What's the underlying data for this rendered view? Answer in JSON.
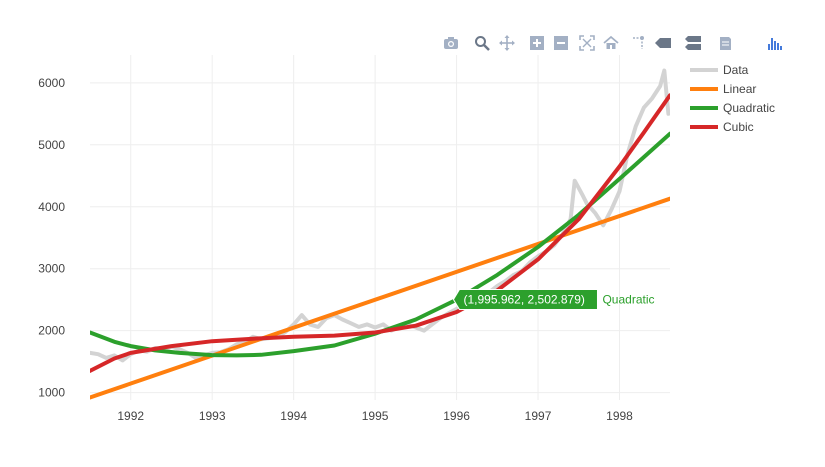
{
  "modebar": {
    "buttons": [
      {
        "name": "camera-icon",
        "title": "Download plot as a png"
      },
      {
        "name": "zoom-icon",
        "title": "Zoom"
      },
      {
        "name": "pan-icon",
        "title": "Pan"
      },
      {
        "name": "zoom-in-icon",
        "title": "Zoom in"
      },
      {
        "name": "zoom-out-icon",
        "title": "Zoom out"
      },
      {
        "name": "autoscale-icon",
        "title": "Autoscale"
      },
      {
        "name": "home-icon",
        "title": "Reset axes"
      },
      {
        "name": "spike-lines-icon",
        "title": "Toggle Spike Lines"
      },
      {
        "name": "hover-closest-icon",
        "title": "Show closest data on hover"
      },
      {
        "name": "hover-compare-icon",
        "title": "Compare data on hover"
      },
      {
        "name": "edit-icon",
        "title": "Edit in Chart Studio"
      },
      {
        "name": "plotly-logo-icon",
        "title": "Produced with Plotly"
      }
    ]
  },
  "chart_data": {
    "type": "line",
    "title": "",
    "xlabel": "",
    "ylabel": "",
    "xlim": [
      1991.5,
      1998.62
    ],
    "ylim": [
      880,
      6450
    ],
    "x_ticks": [
      1992,
      1993,
      1994,
      1995,
      1996,
      1997,
      1998
    ],
    "x_tick_labels": [
      "1992",
      "1993",
      "1994",
      "1995",
      "1996",
      "1997",
      "1998"
    ],
    "y_ticks": [
      1000,
      2000,
      3000,
      4000,
      5000,
      6000
    ],
    "y_tick_labels": [
      "1000",
      "2000",
      "3000",
      "4000",
      "5000",
      "6000"
    ],
    "grid": true,
    "legend_position": "top-right",
    "series": [
      {
        "name": "Data",
        "color": "#d3d3d3",
        "x": [
          1991.5,
          1991.6,
          1991.7,
          1991.8,
          1991.9,
          1992.0,
          1992.1,
          1992.2,
          1992.3,
          1992.4,
          1992.5,
          1992.6,
          1992.7,
          1992.8,
          1992.9,
          1993.0,
          1993.1,
          1993.2,
          1993.3,
          1993.4,
          1993.5,
          1993.6,
          1993.7,
          1993.8,
          1993.9,
          1994.0,
          1994.1,
          1994.2,
          1994.3,
          1994.4,
          1994.5,
          1994.6,
          1994.7,
          1994.8,
          1994.9,
          1995.0,
          1995.1,
          1995.2,
          1995.3,
          1995.4,
          1995.5,
          1995.6,
          1995.7,
          1995.8,
          1995.9,
          1996.0,
          1996.1,
          1996.2,
          1996.3,
          1996.4,
          1996.5,
          1996.6,
          1996.7,
          1996.8,
          1996.9,
          1997.0,
          1997.1,
          1997.2,
          1997.3,
          1997.4,
          1997.45,
          1997.5,
          1997.55,
          1997.6,
          1997.7,
          1997.8,
          1997.9,
          1998.0,
          1998.1,
          1998.2,
          1998.3,
          1998.4,
          1998.5,
          1998.55,
          1998.6
        ],
        "y": [
          1640,
          1620,
          1560,
          1600,
          1520,
          1620,
          1680,
          1660,
          1720,
          1700,
          1740,
          1700,
          1640,
          1560,
          1600,
          1640,
          1650,
          1700,
          1780,
          1820,
          1900,
          1860,
          1880,
          1900,
          1980,
          2100,
          2250,
          2100,
          2060,
          2200,
          2250,
          2180,
          2120,
          2060,
          2100,
          2050,
          2100,
          2000,
          2060,
          2100,
          2050,
          2000,
          2100,
          2200,
          2280,
          2350,
          2420,
          2500,
          2560,
          2620,
          2720,
          2800,
          2900,
          2960,
          3100,
          3200,
          3280,
          3380,
          3560,
          3800,
          4420,
          4300,
          4180,
          4050,
          3900,
          3700,
          3950,
          4250,
          4850,
          5300,
          5600,
          5750,
          5950,
          6200,
          5500
        ]
      },
      {
        "name": "Linear",
        "color": "#ff7f0e",
        "x": [
          1991.5,
          1998.62
        ],
        "y": [
          920,
          4130
        ]
      },
      {
        "name": "Quadratic",
        "color": "#2ca02c",
        "x": [
          1991.5,
          1991.8,
          1992.0,
          1992.3,
          1992.6,
          1993.0,
          1993.3,
          1993.6,
          1994.0,
          1994.5,
          1995.0,
          1995.5,
          1996.0,
          1996.5,
          1997.0,
          1997.5,
          1998.0,
          1998.62
        ],
        "y": [
          1970,
          1820,
          1750,
          1680,
          1640,
          1605,
          1600,
          1610,
          1670,
          1760,
          1950,
          2180,
          2500,
          2900,
          3350,
          3870,
          4450,
          5180
        ]
      },
      {
        "name": "Cubic",
        "color": "#d62728",
        "x": [
          1991.5,
          1991.8,
          1992.0,
          1992.5,
          1993.0,
          1993.5,
          1994.0,
          1994.5,
          1995.0,
          1995.5,
          1996.0,
          1996.5,
          1997.0,
          1997.5,
          1998.0,
          1998.3,
          1998.62
        ],
        "y": [
          1350,
          1550,
          1640,
          1750,
          1830,
          1870,
          1900,
          1920,
          1970,
          2080,
          2300,
          2650,
          3150,
          3800,
          4650,
          5200,
          5800
        ]
      }
    ],
    "hover_label": {
      "text": "(1,995.962, 2,502.879)",
      "series_name": "Quadratic",
      "x": 1995.962,
      "y": 2502.879
    }
  }
}
